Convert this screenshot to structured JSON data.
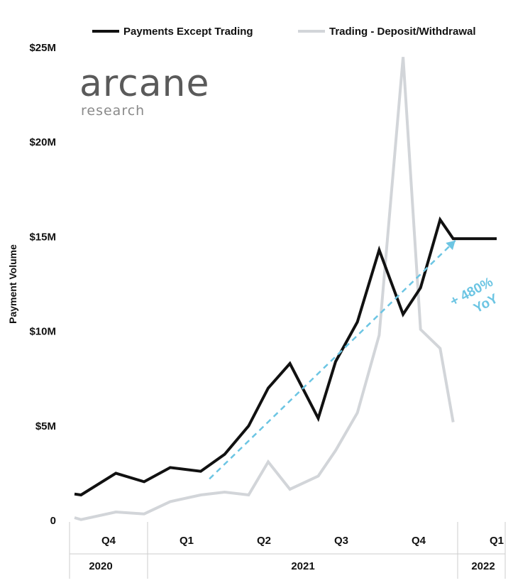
{
  "chart_data": {
    "type": "line",
    "title": "",
    "xlabel": "",
    "ylabel": "Payment Volume",
    "ylim": [
      0,
      25
    ],
    "y_unit": "$M",
    "yticks": [
      {
        "value": 0,
        "label": "0"
      },
      {
        "value": 5,
        "label": "$5M"
      },
      {
        "value": 10,
        "label": "$10M"
      },
      {
        "value": 15,
        "label": "$15M"
      },
      {
        "value": 20,
        "label": "$20M"
      },
      {
        "value": 25,
        "label": "$25M"
      }
    ],
    "grid": false,
    "legend_position": "top",
    "quarters": [
      {
        "label": "Q4",
        "year": "2020"
      },
      {
        "label": "Q1",
        "year": "2021"
      },
      {
        "label": "Q2",
        "year": "2021"
      },
      {
        "label": "Q3",
        "year": "2021"
      },
      {
        "label": "Q4",
        "year": "2021"
      },
      {
        "label": "Q1",
        "year": "2022"
      }
    ],
    "years": [
      {
        "label": "2020",
        "quarters": 1
      },
      {
        "label": "2021",
        "quarters": 4
      },
      {
        "label": "2022",
        "quarters": 1
      }
    ],
    "x_quarter_positions": [
      0,
      0.5,
      1.5,
      2.5,
      3,
      3.5,
      4,
      4.5,
      5,
      5.5,
      6,
      6.5,
      7,
      7.5,
      8,
      8.5,
      9,
      9.5,
      10,
      10.5,
      11,
      11.5,
      12,
      12.5,
      13
    ],
    "series": [
      {
        "name": "Payments Except Trading",
        "color": "#111111",
        "x": [
          0.0,
          0.15,
          0.95,
          1.6,
          2.2,
          2.9,
          3.45,
          4.0,
          4.45,
          4.95,
          5.6,
          6.0,
          6.5,
          7.0,
          7.55,
          7.95,
          8.4,
          8.7,
          9.05,
          9.4,
          9.7
        ],
        "values": [
          1.4,
          1.35,
          2.5,
          2.05,
          2.8,
          2.6,
          3.5,
          5.0,
          7.0,
          8.3,
          5.4,
          8.4,
          10.5,
          14.3,
          10.9,
          12.3,
          15.9,
          14.9,
          14.9,
          14.9,
          14.9
        ]
      },
      {
        "name": "Trading - Deposit/Withdrawal",
        "color": "#d2d5d9",
        "x": [
          0.0,
          0.15,
          0.95,
          1.6,
          2.2,
          2.9,
          3.45,
          4.0,
          4.45,
          4.95,
          5.6,
          6.0,
          6.5,
          7.0,
          7.55,
          7.95,
          8.4,
          8.7
        ],
        "values": [
          0.15,
          0.05,
          0.45,
          0.35,
          1.0,
          1.35,
          1.5,
          1.35,
          3.1,
          1.65,
          2.35,
          3.7,
          5.7,
          9.8,
          24.5,
          10.1,
          9.1,
          5.2
        ]
      }
    ],
    "annotation": {
      "text_line1": "+ 480%",
      "text_line2": "YoY",
      "color": "#6cc5e3",
      "trend_start": {
        "x": 3.1,
        "y": 2.2
      },
      "trend_end": {
        "x": 8.75,
        "y": 14.8
      }
    },
    "logo": {
      "name": "arcane",
      "tagline": "research"
    }
  }
}
